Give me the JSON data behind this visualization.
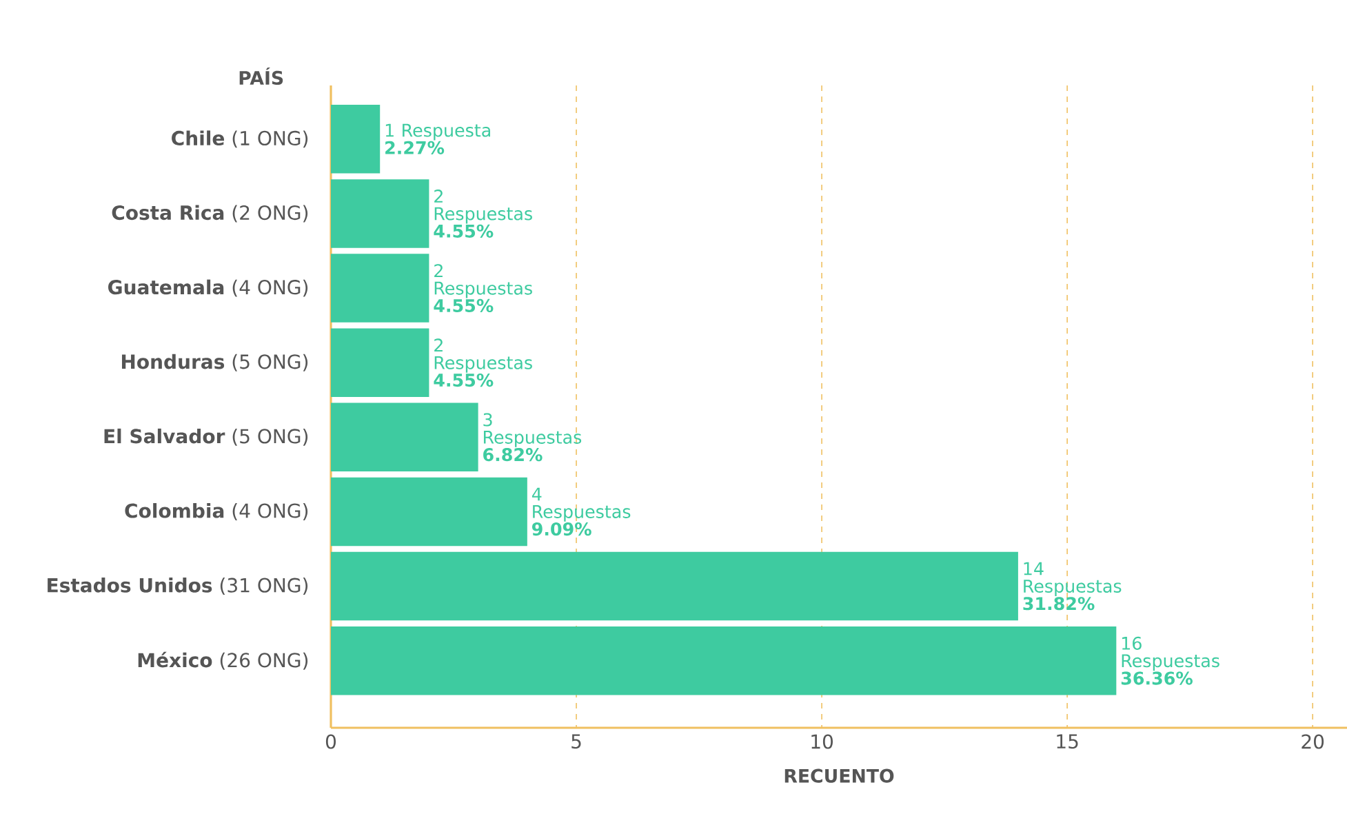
{
  "chart_data": {
    "type": "bar",
    "orientation": "horizontal",
    "xlabel": "RECUENTO",
    "ylabel": "PAÍS",
    "categories": [
      "**Chile** (1 ONG)",
      "**Costa Rica** (2 ONG)",
      "**Guatemala** (4 ONG)",
      "**Honduras** (5 ONG)",
      "**El Salvador** (5 ONG)",
      "**Colombia** (4 ONG)",
      "**Estados Unidos** (31 ONG)",
      "**México** (26 ONG)"
    ],
    "values": [
      1,
      2,
      2,
      2,
      3,
      4,
      14,
      16
    ],
    "value_labels": [
      "1 Respuesta **2.27%**",
      "2 Respuestas **4.55%**",
      "2 Respuestas **4.55%**",
      "2 Respuestas **4.55%**",
      "3 Respuestas **6.82%**",
      "4 Respuestas **9.09%**",
      "14 Respuestas **31.82%**",
      "16 Respuestas **36.36%**"
    ],
    "color": "#3ecba0",
    "xlim": [
      0,
      20.7
    ],
    "xticks": [
      0,
      5,
      10,
      15,
      20
    ],
    "grid": "x"
  }
}
